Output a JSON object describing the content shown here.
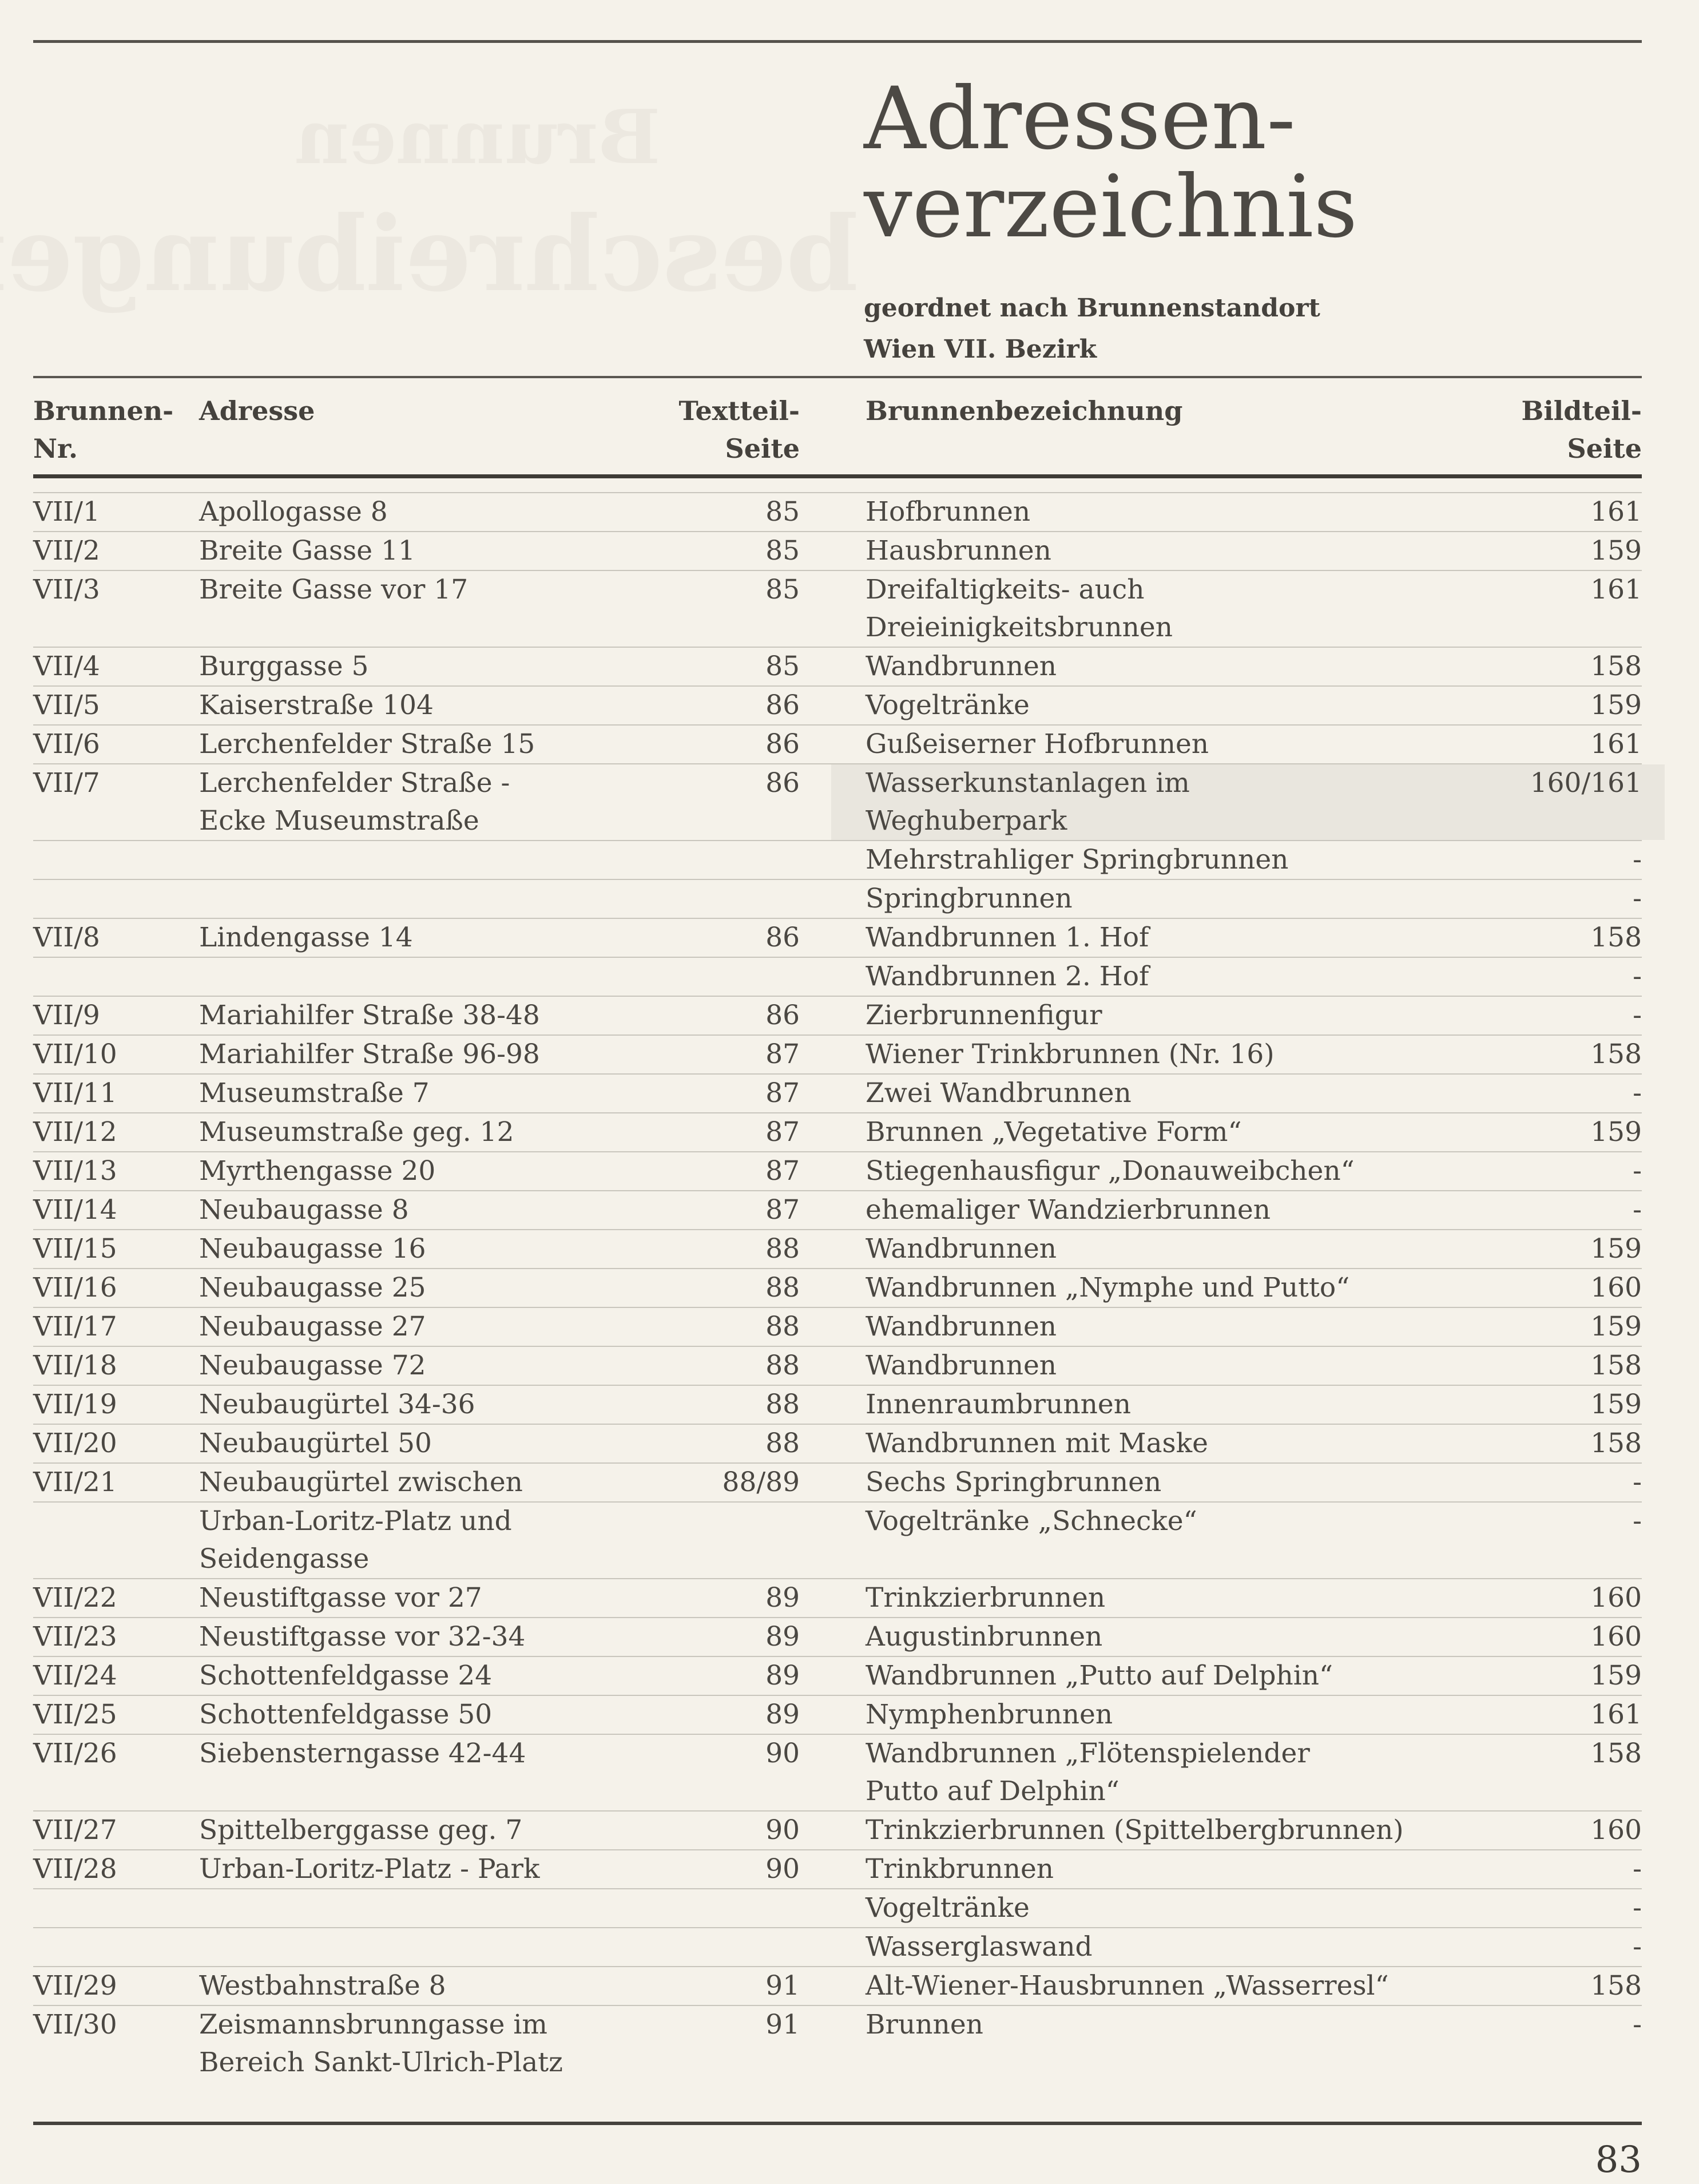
{
  "page": {
    "title_line1": "Adressen-",
    "title_line2": "verzeichnis",
    "subtitle_line1": "geordnet nach Brunnenstandort",
    "subtitle_line2": "Wien VII. Bezirk",
    "page_number": "83",
    "ghost_showthrough_line1": "Brunnen",
    "ghost_showthrough_line2": "beschreibungen"
  },
  "table": {
    "header": {
      "col_nr_line1": "Brunnen-",
      "col_nr_line2": "Nr.",
      "col_adresse": "Adresse",
      "col_textteil_line1": "Textteil-",
      "col_textteil_line2": "Seite",
      "col_bezeichnung": "Brunnenbezeichnung",
      "col_bildteil_line1": "Bildteil-",
      "col_bildteil_line2": "Seite"
    },
    "rows": [
      {
        "nr": "VII/1",
        "addr": [
          "Apollogasse 8"
        ],
        "page": "85",
        "bez": [
          "Hofbrunnen"
        ],
        "bild": "161"
      },
      {
        "nr": "VII/2",
        "addr": [
          "Breite Gasse 11"
        ],
        "page": "85",
        "bez": [
          "Hausbrunnen"
        ],
        "bild": "159"
      },
      {
        "nr": "VII/3",
        "addr": [
          "Breite Gasse vor 17"
        ],
        "page": "85",
        "bez": [
          "Dreifaltigkeits- auch",
          "Dreieinigkeitsbrunnen"
        ],
        "bild": "161"
      },
      {
        "nr": "VII/4",
        "addr": [
          "Burggasse 5"
        ],
        "page": "85",
        "bez": [
          "Wandbrunnen"
        ],
        "bild": "158"
      },
      {
        "nr": "VII/5",
        "addr": [
          "Kaiserstraße 104"
        ],
        "page": "86",
        "bez": [
          "Vogeltränke"
        ],
        "bild": "159"
      },
      {
        "nr": "VII/6",
        "addr": [
          "Lerchenfelder Straße 15"
        ],
        "page": "86",
        "bez": [
          "Gußeiserner Hofbrunnen"
        ],
        "bild": "161"
      },
      {
        "nr": "VII/7",
        "addr": [
          "Lerchenfelder Straße -",
          "Ecke Museumstraße"
        ],
        "page": "86",
        "bez": [
          "Wasserkunstanlagen im",
          "Weghuberpark"
        ],
        "bild": "160/161",
        "highlight": true
      },
      {
        "bez": [
          "Mehrstrahliger Springbrunnen"
        ],
        "bild": "-"
      },
      {
        "bez": [
          "Springbrunnen"
        ],
        "bild": "-"
      },
      {
        "nr": "VII/8",
        "addr": [
          "Lindengasse 14"
        ],
        "page": "86",
        "bez": [
          "Wandbrunnen 1. Hof"
        ],
        "bild": "158"
      },
      {
        "bez": [
          "Wandbrunnen 2. Hof"
        ],
        "bild": "-"
      },
      {
        "nr": "VII/9",
        "addr": [
          "Mariahilfer Straße 38-48"
        ],
        "page": "86",
        "bez": [
          "Zierbrunnenfigur"
        ],
        "bild": "-"
      },
      {
        "nr": "VII/10",
        "addr": [
          "Mariahilfer Straße 96-98"
        ],
        "page": "87",
        "bez": [
          "Wiener Trinkbrunnen (Nr. 16)"
        ],
        "bild": "158"
      },
      {
        "nr": "VII/11",
        "addr": [
          "Museumstraße 7"
        ],
        "page": "87",
        "bez": [
          "Zwei Wandbrunnen"
        ],
        "bild": "-"
      },
      {
        "nr": "VII/12",
        "addr": [
          "Museumstraße geg. 12"
        ],
        "page": "87",
        "bez": [
          "Brunnen „Vegetative Form“"
        ],
        "bild": "159"
      },
      {
        "nr": "VII/13",
        "addr": [
          "Myrthengasse 20"
        ],
        "page": "87",
        "bez": [
          "Stiegenhausfigur „Donauweibchen“"
        ],
        "bild": "-"
      },
      {
        "nr": "VII/14",
        "addr": [
          "Neubaugasse 8"
        ],
        "page": "87",
        "bez": [
          "ehemaliger Wandzierbrunnen"
        ],
        "bild": "-"
      },
      {
        "nr": "VII/15",
        "addr": [
          "Neubaugasse 16"
        ],
        "page": "88",
        "bez": [
          "Wandbrunnen"
        ],
        "bild": "159"
      },
      {
        "nr": "VII/16",
        "addr": [
          "Neubaugasse 25"
        ],
        "page": "88",
        "bez": [
          "Wandbrunnen „Nymphe und Putto“"
        ],
        "bild": "160"
      },
      {
        "nr": "VII/17",
        "addr": [
          "Neubaugasse 27"
        ],
        "page": "88",
        "bez": [
          "Wandbrunnen"
        ],
        "bild": "159"
      },
      {
        "nr": "VII/18",
        "addr": [
          "Neubaugasse 72"
        ],
        "page": "88",
        "bez": [
          "Wandbrunnen"
        ],
        "bild": "158"
      },
      {
        "nr": "VII/19",
        "addr": [
          "Neubaugürtel 34-36"
        ],
        "page": "88",
        "bez": [
          "Innenraumbrunnen"
        ],
        "bild": "159"
      },
      {
        "nr": "VII/20",
        "addr": [
          "Neubaugürtel 50"
        ],
        "page": "88",
        "bez": [
          "Wandbrunnen mit Maske"
        ],
        "bild": "158"
      },
      {
        "nr": "VII/21",
        "addr": [
          "Neubaugürtel zwischen"
        ],
        "page": "88/89",
        "bez": [
          "Sechs Springbrunnen"
        ],
        "bild": "-"
      },
      {
        "addr": [
          "Urban-Loritz-Platz und",
          "Seidengasse"
        ],
        "bez": [
          "Vogeltränke „Schnecke“"
        ],
        "bild": "-"
      },
      {
        "nr": "VII/22",
        "addr": [
          "Neustiftgasse vor 27"
        ],
        "page": "89",
        "bez": [
          "Trinkzierbrunnen"
        ],
        "bild": "160"
      },
      {
        "nr": "VII/23",
        "addr": [
          "Neustiftgasse vor 32-34"
        ],
        "page": "89",
        "bez": [
          "Augustinbrunnen"
        ],
        "bild": "160"
      },
      {
        "nr": "VII/24",
        "addr": [
          "Schottenfeldgasse 24"
        ],
        "page": "89",
        "bez": [
          "Wandbrunnen „Putto auf Delphin“"
        ],
        "bild": "159"
      },
      {
        "nr": "VII/25",
        "addr": [
          "Schottenfeldgasse 50"
        ],
        "page": "89",
        "bez": [
          "Nymphenbrunnen"
        ],
        "bild": "161"
      },
      {
        "nr": "VII/26",
        "addr": [
          "Siebensterngasse 42-44"
        ],
        "page": "90",
        "bez": [
          "Wandbrunnen „Flötenspielender",
          "Putto auf Delphin“"
        ],
        "bild": "158"
      },
      {
        "nr": "VII/27",
        "addr": [
          "Spittelberggasse geg. 7"
        ],
        "page": "90",
        "bez": [
          "Trinkzierbrunnen (Spittelbergbrunnen)"
        ],
        "bild": "160"
      },
      {
        "nr": "VII/28",
        "addr": [
          "Urban-Loritz-Platz - Park"
        ],
        "page": "90",
        "bez": [
          "Trinkbrunnen"
        ],
        "bild": "-"
      },
      {
        "bez": [
          "Vogeltränke"
        ],
        "bild": "-"
      },
      {
        "bez": [
          "Wasserglaswand"
        ],
        "bild": "-"
      },
      {
        "nr": "VII/29",
        "addr": [
          "Westbahnstraße 8"
        ],
        "page": "91",
        "bez": [
          "Alt-Wiener-Hausbrunnen „Wasserresl“"
        ],
        "bild": "158"
      },
      {
        "nr": "VII/30",
        "addr": [
          "Zeismannsbrunngasse im",
          "Bereich Sankt-Ulrich-Platz"
        ],
        "page": "91",
        "bez": [
          "Brunnen"
        ],
        "bild": "-"
      }
    ]
  }
}
